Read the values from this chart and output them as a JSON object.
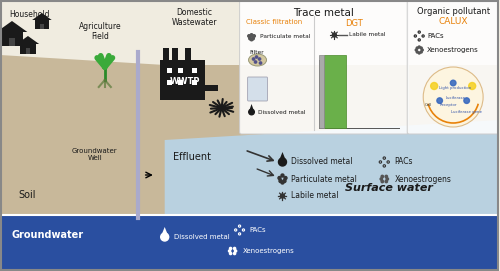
{
  "bg_color": "#f0ece0",
  "soil_color": "#c8b89a",
  "groundwater_color": "#2a4fa0",
  "surface_water_color": "#b8d4e8",
  "border_color": "#888888",
  "title_text": "Trace metal",
  "classic_label": "Classic filtration",
  "dgt_label": "DGT",
  "organic_title": "Organic pollutant",
  "calux_label": "CALUX",
  "household_text": "Household",
  "agri_text": "Agriculture\nField",
  "domestic_text": "Domestic\nWastewater",
  "wwtp_text": "WWTP",
  "effluent_text": "Effluent",
  "gw_well_text": "Groundwater\nWell",
  "soil_text": "Soil",
  "groundwater_text": "Groundwater",
  "surface_water_text": "Surface water",
  "particulate_label": "Particulate metal",
  "dissolved_label": "Dissolved metal",
  "labile_label": "Labile metal",
  "pacs_label": "PACs",
  "xeno_label": "Xenoestrogens",
  "filter_label": "Filter",
  "orange_color": "#e8820a",
  "dark_color": "#1a1a1a",
  "green_color": "#4a8a3a",
  "blue_color": "#3a6abf",
  "text_color": "#222222",
  "gray_color": "#888888"
}
